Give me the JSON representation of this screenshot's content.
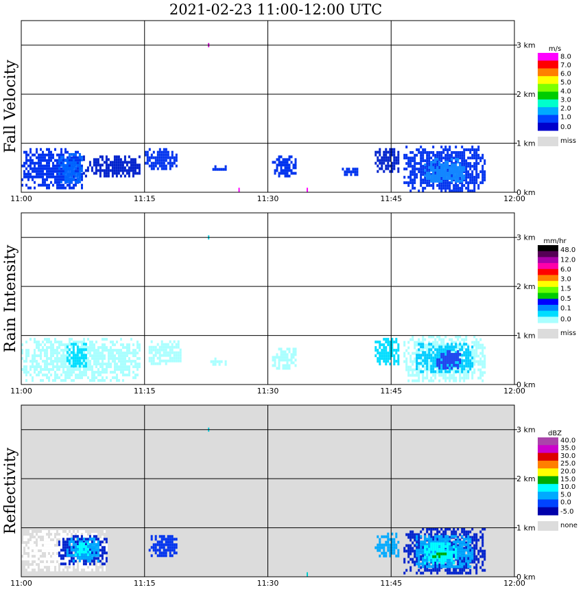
{
  "chart_data": [
    {
      "type": "heatmap",
      "title": "2021-02-23   11:00-12:00 UTC",
      "ylabel": "Fall Velocity",
      "background": "#ffffff",
      "xticks": [
        "11:00",
        "11:15",
        "11:30",
        "11:45",
        "12:00"
      ],
      "xlim_minutes": [
        0,
        60
      ],
      "ylim_km": [
        0,
        3.5
      ],
      "yticks": [
        "0 km",
        "1 km",
        "2 km",
        "3 km"
      ],
      "colorbar": {
        "unit": "m/s",
        "labels": [
          "8.0",
          "7.0",
          "6.0",
          "5.0",
          "4.0",
          "3.0",
          "2.0",
          "1.0",
          "0.0"
        ],
        "colors": [
          "#ff00ff",
          "#ff0000",
          "#ff7f00",
          "#ffff00",
          "#7fff00",
          "#00cc00",
          "#00ffcc",
          "#00aaff",
          "#0044ff",
          "#0000cc"
        ],
        "missing_label": "miss",
        "missing_color": "#dcdcdc"
      },
      "echoes": [
        {
          "t0": 0.0,
          "t1": 7.5,
          "z0": 0.1,
          "z1": 0.9,
          "color": "#0033ee"
        },
        {
          "t0": 4.5,
          "t1": 7.5,
          "z0": 0.2,
          "z1": 0.8,
          "color": "#0066ff"
        },
        {
          "t0": 7.5,
          "t1": 14.5,
          "z0": 0.35,
          "z1": 0.75,
          "color": "#0022cc"
        },
        {
          "t0": 15.0,
          "t1": 19.0,
          "z0": 0.5,
          "z1": 0.9,
          "color": "#0033ee"
        },
        {
          "t0": 23.0,
          "t1": 25.0,
          "z0": 0.45,
          "z1": 0.55,
          "color": "#0033ee"
        },
        {
          "t0": 30.5,
          "t1": 33.5,
          "z0": 0.35,
          "z1": 0.75,
          "color": "#0033ee"
        },
        {
          "t0": 39.0,
          "t1": 41.0,
          "z0": 0.35,
          "z1": 0.5,
          "color": "#0033ee"
        },
        {
          "t0": 43.0,
          "t1": 46.0,
          "z0": 0.4,
          "z1": 0.9,
          "color": "#0022cc"
        },
        {
          "t0": 46.5,
          "t1": 56.5,
          "z0": 0.05,
          "z1": 0.95,
          "color": "#0033ee"
        },
        {
          "t0": 49.0,
          "t1": 54.0,
          "z0": 0.2,
          "z1": 0.7,
          "color": "#1188ff"
        }
      ],
      "specks": [
        {
          "t": 22.8,
          "z": 3.0,
          "color": "#cc00cc"
        },
        {
          "t": 26.5,
          "z": 0.05,
          "color": "#ff00ff"
        },
        {
          "t": 34.8,
          "z": 0.05,
          "color": "#ff00ff"
        }
      ]
    },
    {
      "type": "heatmap",
      "ylabel": "Rain Intensity",
      "background": "#ffffff",
      "xticks": [
        "11:00",
        "11:15",
        "11:30",
        "11:45",
        "12:00"
      ],
      "xlim_minutes": [
        0,
        60
      ],
      "ylim_km": [
        0,
        3.5
      ],
      "yticks": [
        "0 km",
        "1 km",
        "2 km",
        "3 km"
      ],
      "colorbar": {
        "unit": "mm/hr",
        "labels": [
          "48.0",
          "12.0",
          "6.0",
          "3.0",
          "1.5",
          "0.5",
          "0.1",
          "0.0"
        ],
        "colors": [
          "#000000",
          "#550055",
          "#aa00aa",
          "#ff00aa",
          "#ff0000",
          "#ff7f00",
          "#ffff00",
          "#66ff00",
          "#00cc00",
          "#0000ff",
          "#0088ff",
          "#00ddff",
          "#aaffff"
        ],
        "missing_label": "miss",
        "missing_color": "#dcdcdc"
      },
      "echoes": [
        {
          "t0": 0.0,
          "t1": 14.5,
          "z0": 0.1,
          "z1": 0.95,
          "color": "#aaffff"
        },
        {
          "t0": 5.5,
          "t1": 8.0,
          "z0": 0.35,
          "z1": 0.85,
          "color": "#00ddff"
        },
        {
          "t0": 15.5,
          "t1": 19.5,
          "z0": 0.45,
          "z1": 0.9,
          "color": "#aaffff"
        },
        {
          "t0": 23.0,
          "t1": 25.0,
          "z0": 0.4,
          "z1": 0.55,
          "color": "#aaffff"
        },
        {
          "t0": 30.5,
          "t1": 33.5,
          "z0": 0.35,
          "z1": 0.75,
          "color": "#aaffff"
        },
        {
          "t0": 43.0,
          "t1": 46.0,
          "z0": 0.4,
          "z1": 0.95,
          "color": "#00ddff"
        },
        {
          "t0": 46.5,
          "t1": 56.5,
          "z0": 0.05,
          "z1": 1.0,
          "color": "#aaffff"
        },
        {
          "t0": 48.0,
          "t1": 55.0,
          "z0": 0.25,
          "z1": 0.85,
          "color": "#00ccff"
        },
        {
          "t0": 50.5,
          "t1": 53.5,
          "z0": 0.35,
          "z1": 0.7,
          "color": "#2244ee"
        }
      ],
      "specks": [
        {
          "t": 22.8,
          "z": 3.0,
          "color": "#00ccdd"
        }
      ]
    },
    {
      "type": "heatmap",
      "ylabel": "Reflectivity",
      "background": "#dcdcdc",
      "xticks": [
        "11:00",
        "11:15",
        "11:30",
        "11:45",
        "12:00"
      ],
      "xlim_minutes": [
        0,
        60
      ],
      "ylim_km": [
        0,
        3.5
      ],
      "yticks": [
        "0 km",
        "1 km",
        "2 km",
        "3 km"
      ],
      "colorbar": {
        "unit": "dBZ",
        "labels": [
          "40.0",
          "35.0",
          "30.0",
          "25.0",
          "20.0",
          "15.0",
          "10.0",
          "5.0",
          "0.0",
          "-5.0"
        ],
        "colors": [
          "#aa44aa",
          "#cc00cc",
          "#dd0000",
          "#ff7f00",
          "#ffff00",
          "#00aa00",
          "#00ffff",
          "#00aaff",
          "#0044ff",
          "#0000aa"
        ],
        "missing_label": "none",
        "missing_color": "#dcdcdc"
      },
      "echoes": [
        {
          "t0": 0.0,
          "t1": 10.5,
          "z0": 0.15,
          "z1": 0.95,
          "color": "#ffffff"
        },
        {
          "t0": 4.5,
          "t1": 10.5,
          "z0": 0.25,
          "z1": 0.85,
          "color": "#0022cc"
        },
        {
          "t0": 5.5,
          "t1": 9.5,
          "z0": 0.35,
          "z1": 0.8,
          "color": "#00aaff"
        },
        {
          "t0": 6.5,
          "t1": 8.5,
          "z0": 0.45,
          "z1": 0.7,
          "color": "#00ffff"
        },
        {
          "t0": 15.5,
          "t1": 19.0,
          "z0": 0.45,
          "z1": 0.85,
          "color": "#0033ee"
        },
        {
          "t0": 43.0,
          "t1": 46.0,
          "z0": 0.4,
          "z1": 0.9,
          "color": "#00aaff"
        },
        {
          "t0": 46.5,
          "t1": 56.5,
          "z0": 0.05,
          "z1": 1.0,
          "color": "#0022cc"
        },
        {
          "t0": 48.0,
          "t1": 55.0,
          "z0": 0.2,
          "z1": 0.85,
          "color": "#00aaff"
        },
        {
          "t0": 49.0,
          "t1": 53.0,
          "z0": 0.3,
          "z1": 0.7,
          "color": "#00ffff"
        },
        {
          "t0": 50.0,
          "t1": 52.0,
          "z0": 0.4,
          "z1": 0.55,
          "color": "#00aa00"
        }
      ],
      "specks": [
        {
          "t": 22.8,
          "z": 3.0,
          "color": "#00ccdd"
        },
        {
          "t": 34.8,
          "z": 0.05,
          "color": "#00cccc"
        }
      ]
    }
  ]
}
